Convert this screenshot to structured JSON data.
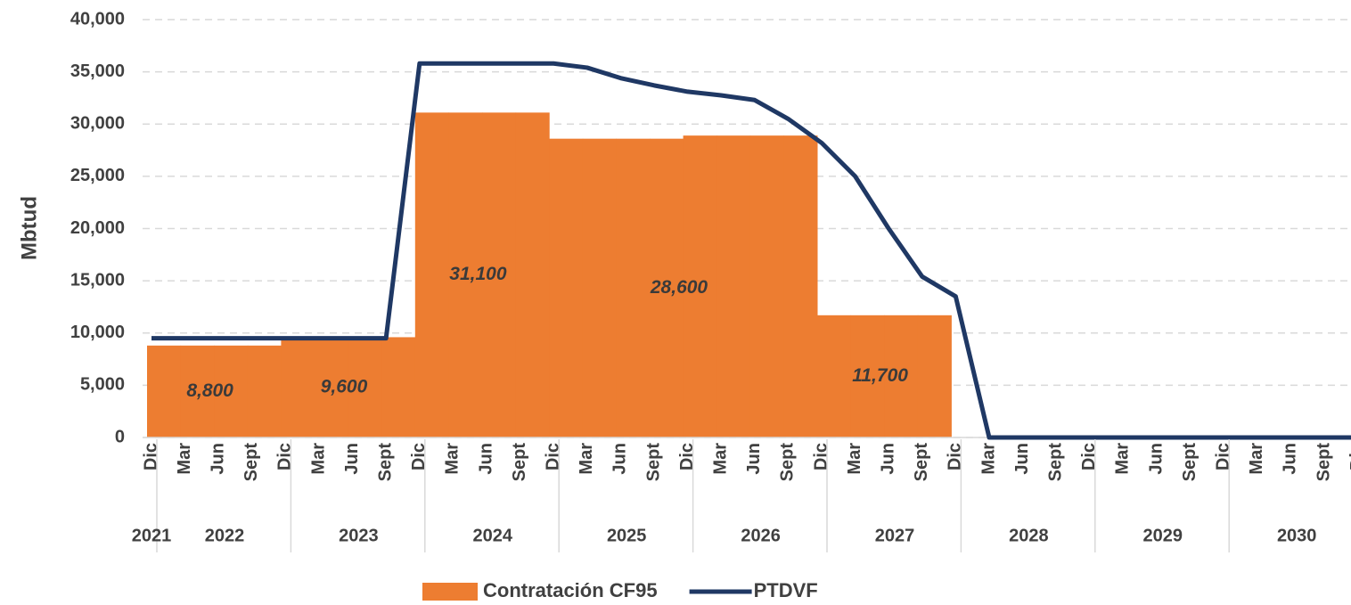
{
  "chart_data": {
    "type": "bar_line",
    "y_label": "Mbtud",
    "categories": [
      "Dic",
      "Mar",
      "Jun",
      "Sept",
      "Dic",
      "Mar",
      "Jun",
      "Sept",
      "Dic",
      "Mar",
      "Jun",
      "Sept",
      "Dic",
      "Mar",
      "Jun",
      "Sept",
      "Dic",
      "Mar",
      "Jun",
      "Sept",
      "Dic",
      "Mar",
      "Jun",
      "Sept",
      "Dic",
      "Mar",
      "Jun",
      "Sept",
      "Dic",
      "Mar",
      "Jun",
      "Sept",
      "Dic",
      "Mar",
      "Jun",
      "Sept",
      "Dic"
    ],
    "year_labels": [
      "2021",
      "2022",
      "2023",
      "2024",
      "2025",
      "2026",
      "2027",
      "2028",
      "2029",
      "2030"
    ],
    "series": [
      {
        "name": "Contratación CF95",
        "type": "bar",
        "color": "#ED7D31",
        "values": [
          8800,
          8800,
          8800,
          8800,
          9600,
          9600,
          9600,
          9600,
          31100,
          31100,
          31100,
          31100,
          28600,
          28600,
          28600,
          28600,
          28900,
          28900,
          28900,
          28900,
          11700,
          11700,
          11700,
          11700,
          0,
          0,
          0,
          0,
          0,
          0,
          0,
          0,
          0,
          0,
          0,
          0,
          0
        ],
        "value_labels": [
          null,
          "8,800",
          null,
          null,
          null,
          "9,600",
          null,
          null,
          null,
          "31,100",
          null,
          null,
          null,
          null,
          null,
          "28,600",
          null,
          null,
          null,
          null,
          null,
          "11,700",
          null,
          null,
          null,
          null,
          null,
          null,
          null,
          null,
          null,
          null,
          null,
          null,
          null,
          null,
          null
        ]
      },
      {
        "name": "PTDVF",
        "type": "line",
        "color": "#1F3864",
        "values": [
          9500,
          9500,
          9500,
          9500,
          9500,
          9500,
          9500,
          9500,
          35800,
          35800,
          35800,
          35800,
          35800,
          35400,
          34400,
          33700,
          33100,
          32750,
          32300,
          30500,
          28200,
          25000,
          20000,
          15400,
          13500,
          0,
          0,
          0,
          0,
          0,
          0,
          0,
          0,
          0,
          0,
          0,
          0
        ]
      }
    ],
    "ylim": [
      0,
      40000
    ],
    "yticks": [
      0,
      {
        "value": 5000,
        "label": "5,000"
      },
      {
        "value": 10000,
        "label": "10,000"
      },
      {
        "value": 15000,
        "label": "15,000"
      },
      {
        "value": 20000,
        "label": "20,000"
      },
      {
        "value": 25000,
        "label": "25,000"
      },
      {
        "value": 30000,
        "label": "30,000"
      },
      {
        "value": 35000,
        "label": "35,000"
      },
      {
        "value": 40000,
        "label": "40,000"
      }
    ],
    "grid": true,
    "legend": "bottom"
  }
}
